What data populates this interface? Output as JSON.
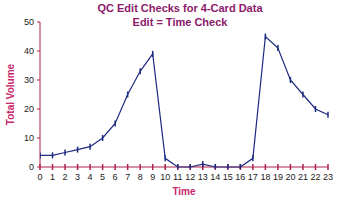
{
  "chart_data": {
    "type": "line",
    "title": "QC Edit Checks for 4-Card Data",
    "subtitle": "Edit = Time Check",
    "x_label": "Time",
    "y_label": "Total Volume",
    "x": [
      0,
      1,
      2,
      3,
      4,
      5,
      6,
      7,
      8,
      9,
      10,
      11,
      12,
      13,
      14,
      15,
      16,
      17,
      18,
      19,
      20,
      21,
      22,
      23
    ],
    "values": [
      4,
      4,
      5,
      6,
      7,
      10,
      15,
      25,
      33,
      39,
      3,
      0,
      0,
      1,
      0,
      0,
      0,
      3,
      45,
      41,
      30,
      25,
      20,
      18
    ],
    "color": "#1c2a80",
    "marker": "tick",
    "grid": false,
    "xlim": [
      0,
      23
    ],
    "xticks": [
      0,
      1,
      2,
      3,
      4,
      5,
      6,
      7,
      8,
      9,
      10,
      11,
      12,
      13,
      14,
      15,
      16,
      17,
      18,
      19,
      20,
      21,
      22,
      23
    ],
    "ylim": [
      0,
      50
    ],
    "yticks": [
      0,
      10,
      20,
      30,
      40,
      50
    ]
  }
}
